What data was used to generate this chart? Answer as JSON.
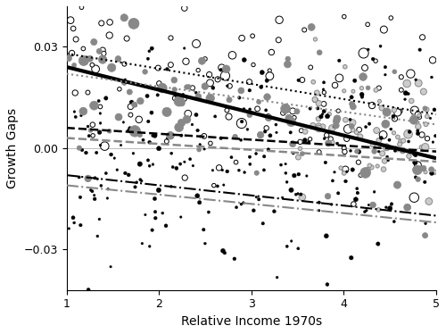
{
  "xlim": [
    1,
    5
  ],
  "ylim": [
    -0.042,
    0.042
  ],
  "yticks": [
    -0.03,
    0.0,
    0.03
  ],
  "xticks": [
    1,
    2,
    3,
    4,
    5
  ],
  "xlabel": "Relative Income 1970s",
  "ylabel": "Growth Gaps",
  "frc_line": {
    "x": [
      1,
      5
    ],
    "y": [
      0.024,
      -0.003
    ],
    "color": "black",
    "lw": 3.0,
    "ls": "solid"
  },
  "cuc_black_line": {
    "x": [
      1,
      5
    ],
    "y": [
      0.028,
      0.01
    ],
    "color": "black",
    "lw": 1.5,
    "ls": "dotted"
  },
  "cuc_grey_line": {
    "x": [
      1,
      5
    ],
    "y": [
      0.022,
      0.007
    ],
    "color": "#888888",
    "lw": 1.5,
    "ls": "dotted"
  },
  "stc_black_line": {
    "x": [
      1,
      5
    ],
    "y": [
      0.006,
      -0.001
    ],
    "color": "black",
    "lw": 1.8,
    "ls": "dashed"
  },
  "stc_grey_line": {
    "x": [
      1,
      5
    ],
    "y": [
      0.003,
      -0.004
    ],
    "color": "#888888",
    "lw": 1.8,
    "ls": "dashed"
  },
  "lgc_black_line": {
    "x": [
      1,
      5
    ],
    "y": [
      -0.008,
      -0.02
    ],
    "color": "black",
    "lw": 1.5,
    "ls": "dashdot"
  },
  "lgc_grey_line": {
    "x": [
      1,
      5
    ],
    "y": [
      -0.011,
      -0.022
    ],
    "color": "#888888",
    "lw": 1.5,
    "ls": "dashdot"
  },
  "hline_color": "#bbbbbb",
  "hline_lw": 0.7,
  "random_seed": 42
}
